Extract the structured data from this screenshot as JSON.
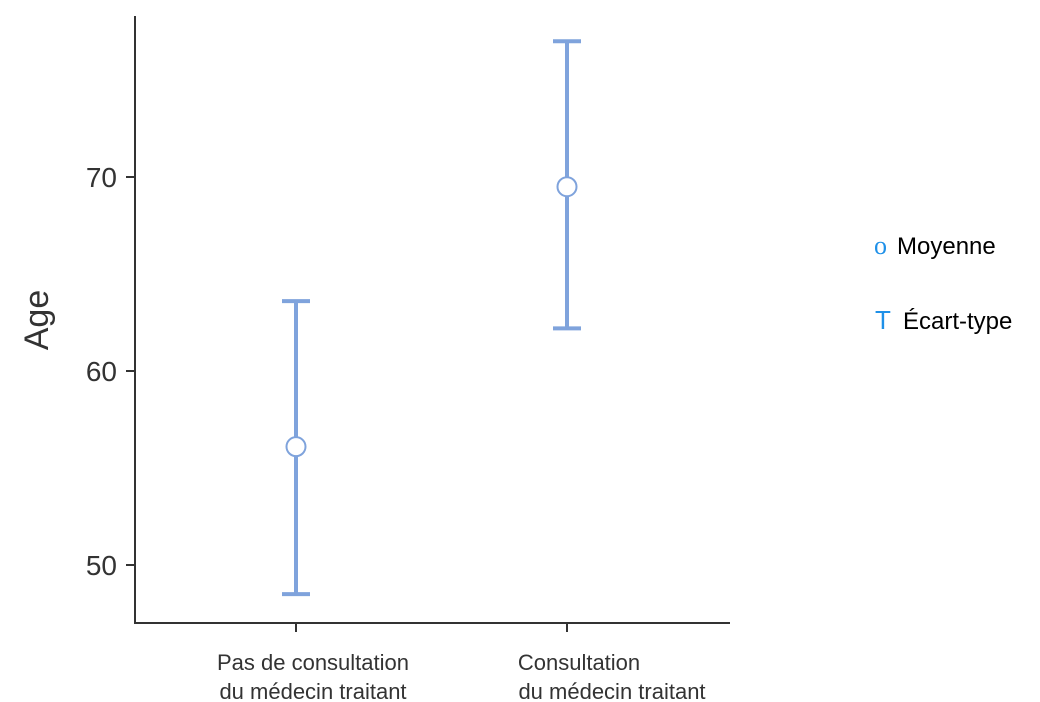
{
  "chart_data": {
    "type": "errorbar",
    "ylabel": "Age",
    "xlabel": "",
    "ylim": [
      47,
      78
    ],
    "yticks": [
      50,
      60,
      70
    ],
    "categories": [
      [
        "Pas de consultation",
        "du médecin traitant"
      ],
      [
        "Consultation",
        "du médecin traitant"
      ]
    ],
    "means": [
      56.1,
      69.5
    ],
    "sd_low": [
      48.5,
      62.2
    ],
    "sd_high": [
      63.6,
      77.0
    ],
    "colors": {
      "bar": "#7fa3dc",
      "legend_glyph": "#1e90e8",
      "axis": "#333333"
    },
    "legend": {
      "position": "right",
      "items": [
        {
          "glyph": "o",
          "label": "Moyenne"
        },
        {
          "glyph": "T",
          "label": "Écart-type"
        }
      ]
    }
  }
}
